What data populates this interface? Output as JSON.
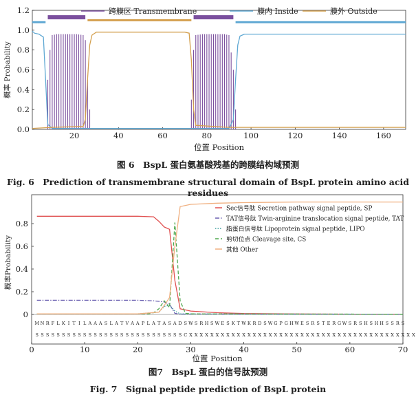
{
  "fig6": {
    "chart_data": {
      "type": "line",
      "xlabel": "位置 Position",
      "ylabel": "概率 Probability",
      "xlim": [
        1,
        170
      ],
      "ylim": [
        0,
        1.2
      ],
      "x_ticks": [
        20,
        40,
        60,
        80,
        100,
        120,
        140,
        160
      ],
      "y_ticks": [
        0,
        0.2,
        0.4,
        0.6,
        0.8,
        1.0,
        1.2
      ],
      "y_tick_labels": [
        "0.0",
        "0.2",
        "0.4",
        "0.6",
        "0.8",
        "1.0",
        "1.2"
      ],
      "legend_position": "top",
      "series": [
        {
          "name": "跨膜区 Transmembrane",
          "color": "#7b4f9e",
          "points": [
            [
              1,
              0.02
            ],
            [
              7,
              0.02
            ],
            [
              8,
              0.5
            ],
            [
              9,
              0.8
            ],
            [
              10,
              0.95
            ],
            [
              12,
              0.96
            ],
            [
              21,
              0.96
            ],
            [
              24,
              0.95
            ],
            [
              25,
              0.9
            ],
            [
              26,
              0.5
            ],
            [
              27,
              0.2
            ],
            [
              28,
              0.05
            ],
            [
              30,
              0.02
            ],
            [
              72,
              0.02
            ],
            [
              73,
              0.3
            ],
            [
              74,
              0.8
            ],
            [
              75,
              0.95
            ],
            [
              78,
              0.96
            ],
            [
              88,
              0.96
            ],
            [
              90,
              0.95
            ],
            [
              92,
              0.6
            ],
            [
              93,
              0.2
            ],
            [
              94,
              0.05
            ],
            [
              96,
              0.01
            ],
            [
              170,
              0.01
            ]
          ]
        },
        {
          "name": "膜内 Inside",
          "color": "#5fa8d3",
          "points": [
            [
              1,
              0.99
            ],
            [
              2,
              0.97
            ],
            [
              4,
              0.96
            ],
            [
              6,
              0.93
            ],
            [
              7,
              0.5
            ],
            [
              8,
              0.05
            ],
            [
              10,
              0.01
            ],
            [
              72,
              0.01
            ],
            [
              80,
              0.01
            ],
            [
              90,
              0.01
            ],
            [
              92,
              0.1
            ],
            [
              93,
              0.5
            ],
            [
              94,
              0.85
            ],
            [
              95,
              0.94
            ],
            [
              97,
              0.96
            ],
            [
              170,
              0.96
            ]
          ]
        },
        {
          "name": "膜外 Outside",
          "color": "#d4a04f",
          "points": [
            [
              1,
              0.01
            ],
            [
              10,
              0.02
            ],
            [
              24,
              0.03
            ],
            [
              25,
              0.1
            ],
            [
              26,
              0.5
            ],
            [
              27,
              0.85
            ],
            [
              28,
              0.95
            ],
            [
              30,
              0.98
            ],
            [
              70,
              0.98
            ],
            [
              72,
              0.97
            ],
            [
              73,
              0.7
            ],
            [
              74,
              0.2
            ],
            [
              75,
              0.04
            ],
            [
              90,
              0.02
            ],
            [
              93,
              0.02
            ],
            [
              100,
              0.02
            ],
            [
              170,
              0.02
            ]
          ]
        }
      ],
      "topology_bars": [
        {
          "start": 1,
          "end": 7,
          "level": 1.08,
          "type": "Inside",
          "color": "#5fa8d3"
        },
        {
          "start": 8,
          "end": 25,
          "level": 1.13,
          "type": "Transmembrane",
          "color": "#7b4f9e"
        },
        {
          "start": 26,
          "end": 73,
          "level": 1.1,
          "type": "Outside",
          "color": "#d4a04f"
        },
        {
          "start": 74,
          "end": 92,
          "level": 1.13,
          "type": "Transmembrane",
          "color": "#7b4f9e"
        },
        {
          "start": 93,
          "end": 170,
          "level": 1.08,
          "type": "Inside",
          "color": "#5fa8d3"
        }
      ]
    },
    "caption_cn": "图 6　BspL 蛋白氨基酸残基的跨膜结构域预测",
    "caption_en": "Fig. 6　Prediction of transmembrane structural domain of BspL protein amino acid residues"
  },
  "fig7": {
    "chart_data": {
      "type": "line",
      "xlabel": "位置 Position",
      "ylabel": "概率Probability",
      "xlim": [
        0,
        70
      ],
      "ylim": [
        0,
        1.0
      ],
      "x_ticks": [
        0,
        10,
        20,
        30,
        40,
        50,
        60,
        70
      ],
      "y_ticks": [
        0,
        0.2,
        0.4,
        0.6,
        0.8
      ],
      "y_tick_labels": [
        "0",
        "0.2",
        "0.4",
        "0.6",
        "0.8"
      ],
      "legend_position": "right",
      "sequence_row1": "MNRFLKITILAAASLATVAAPLATASADSWSRHSWESKTWKRDSWGPGHWESRSTERGWSRSHSHHSSRS",
      "sequence_row2": "SSSSSSSSSSSSSSSSSSSSSSSSSSSSCXXXXXXXXXXXXXXXXXXXXXXXXXXXXXXXXXXXXXXXXXXX",
      "series": [
        {
          "name": "Sec信号肽  Secretion pathway signal peptide, SP",
          "color": "#e05050",
          "dash": "",
          "points": [
            [
              1,
              0.865
            ],
            [
              10,
              0.865
            ],
            [
              20,
              0.865
            ],
            [
              23,
              0.86
            ],
            [
              24,
              0.82
            ],
            [
              25,
              0.77
            ],
            [
              26,
              0.75
            ],
            [
              27,
              0.3
            ],
            [
              28,
              0.05
            ],
            [
              30,
              0.03
            ],
            [
              35,
              0.015
            ],
            [
              40,
              0.008
            ],
            [
              50,
              0.004
            ],
            [
              60,
              0.002
            ],
            [
              70,
              0.001
            ]
          ]
        },
        {
          "name": "TAT信号肽 Twin-arginine translocation signal peptide, TAT",
          "color": "#6a5fb0",
          "dash": "6,2,1.5,2",
          "points": [
            [
              1,
              0.125
            ],
            [
              10,
              0.125
            ],
            [
              20,
              0.125
            ],
            [
              23,
              0.12
            ],
            [
              25,
              0.11
            ],
            [
              26,
              0.09
            ],
            [
              27,
              0.01
            ],
            [
              28,
              0.003
            ],
            [
              70,
              0.001
            ]
          ]
        },
        {
          "name": "脂蛋白信号肽 Lipoprotein signal peptide, LIPO",
          "color": "#3fa0a0",
          "dash": "1.5,2",
          "points": [
            [
              1,
              0.005
            ],
            [
              20,
              0.005
            ],
            [
              24,
              0.02
            ],
            [
              25,
              0.07
            ],
            [
              26,
              0.08
            ],
            [
              27,
              0.03
            ],
            [
              28,
              0.005
            ],
            [
              70,
              0.002
            ]
          ]
        },
        {
          "name": "剪切位点 Cleavage site, CS",
          "color": "#4fa84f",
          "dash": "5,3",
          "points": [
            [
              1,
              0.005
            ],
            [
              22,
              0.005
            ],
            [
              23,
              0.015
            ],
            [
              24,
              0.05
            ],
            [
              25,
              0.12
            ],
            [
              26,
              0.06
            ],
            [
              27,
              0.81
            ],
            [
              28,
              0.12
            ],
            [
              29,
              0.01
            ],
            [
              30,
              0.005
            ],
            [
              70,
              0.002
            ]
          ]
        },
        {
          "name": "其他 Other",
          "color": "#f0b080",
          "dash": "",
          "points": [
            [
              1,
              0.005
            ],
            [
              20,
              0.005
            ],
            [
              24,
              0.02
            ],
            [
              25,
              0.08
            ],
            [
              26,
              0.15
            ],
            [
              27,
              0.6
            ],
            [
              28,
              0.95
            ],
            [
              30,
              0.97
            ],
            [
              35,
              0.98
            ],
            [
              40,
              0.985
            ],
            [
              50,
              0.99
            ],
            [
              70,
              0.99
            ]
          ]
        }
      ]
    },
    "caption_cn": "图7　BspL 蛋白的信号肽预测",
    "caption_en": "Fig. 7　Signal peptide prediction of BspL protein"
  }
}
